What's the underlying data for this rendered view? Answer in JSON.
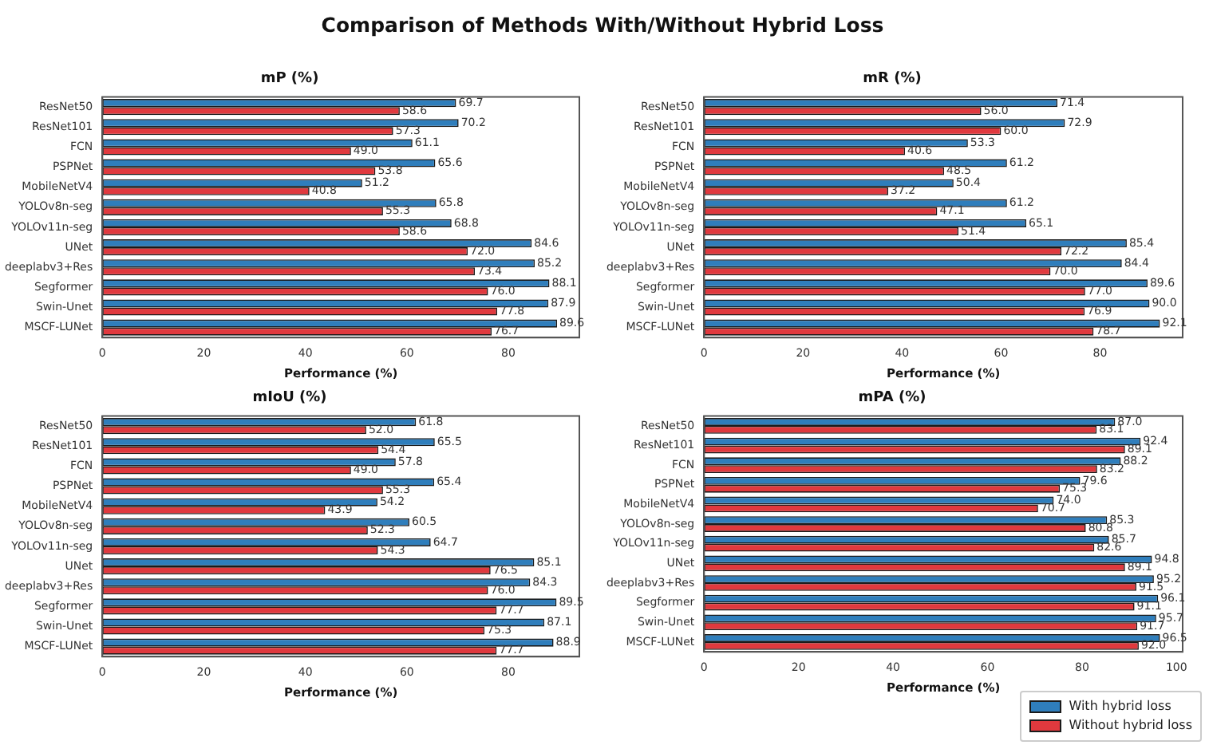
{
  "chart_data": [
    {
      "type": "bar",
      "orientation": "horizontal",
      "title": "mP (%)",
      "xlabel": "Performance (%)",
      "annotations": [
        "Comparison of Methods With/Without Hybrid Loss"
      ],
      "categories": [
        "ResNet50",
        "ResNet101",
        "FCN",
        "PSPNet",
        "MobileNetV4",
        "YOLOv8n-seg",
        "YOLOv11n-seg",
        "UNet",
        "deeplabv3+Res",
        "Segformer",
        "Swin-Unet",
        "MSCF-LUNet"
      ],
      "series": [
        {
          "color": "#2f7ebc",
          "values": [
            69.7,
            70.2,
            61.1,
            65.6,
            51.2,
            65.8,
            68.8,
            84.6,
            85.2,
            88.1,
            87.9,
            89.6
          ],
          "value_labels": [
            "69.7",
            "70.2",
            "61.1",
            "65.6",
            "51.2",
            "65.8",
            "68.8",
            "84.6",
            "85.2",
            "88.1",
            "87.9",
            "89.6"
          ]
        },
        {
          "color": "#e0393e",
          "values": [
            58.6,
            57.3,
            49.0,
            53.8,
            40.8,
            55.3,
            58.6,
            72.0,
            73.4,
            76.0,
            77.8,
            76.7
          ],
          "value_labels": [
            "58.6",
            "57.3",
            "49.0",
            "53.8",
            "40.8",
            "55.3",
            "58.6",
            "72.0",
            "73.4",
            "76.0",
            "77.8",
            "76.7"
          ]
        }
      ],
      "xlim": [
        0,
        94
      ],
      "xticks": [
        0,
        20,
        40,
        60,
        80
      ]
    },
    {
      "type": "bar",
      "orientation": "horizontal",
      "title": "mR (%)",
      "xlabel": "Performance (%)",
      "categories": [
        "ResNet50",
        "ResNet101",
        "FCN",
        "PSPNet",
        "MobileNetV4",
        "YOLOv8n-seg",
        "YOLOv11n-seg",
        "UNet",
        "deeplabv3+Res",
        "Segformer",
        "Swin-Unet",
        "MSCF-LUNet"
      ],
      "series": [
        {
          "color": "#2f7ebc",
          "values": [
            71.4,
            72.9,
            53.3,
            61.2,
            50.4,
            61.2,
            65.1,
            85.4,
            84.4,
            89.6,
            90.0,
            92.1
          ],
          "value_labels": [
            "71.4",
            "72.9",
            "53.3",
            "61.2",
            "50.4",
            "61.2",
            "65.1",
            "85.4",
            "84.4",
            "89.6",
            "90.0",
            "92.1"
          ]
        },
        {
          "color": "#e0393e",
          "values": [
            56.0,
            60.0,
            40.6,
            48.5,
            37.2,
            47.1,
            51.4,
            72.2,
            70.0,
            77.0,
            76.9,
            78.7
          ],
          "value_labels": [
            "56.0",
            "60.0",
            "40.6",
            "48.5",
            "37.2",
            "47.1",
            "51.4",
            "72.2",
            "70.0",
            "77.0",
            "76.9",
            "78.7"
          ]
        }
      ],
      "xlim": [
        0,
        96.7
      ],
      "xticks": [
        0,
        20,
        40,
        60,
        80
      ]
    },
    {
      "type": "bar",
      "orientation": "horizontal",
      "title": "mIoU (%)",
      "xlabel": "Performance (%)",
      "categories": [
        "ResNet50",
        "ResNet101",
        "FCN",
        "PSPNet",
        "MobileNetV4",
        "YOLOv8n-seg",
        "YOLOv11n-seg",
        "UNet",
        "deeplabv3+Res",
        "Segformer",
        "Swin-Unet",
        "MSCF-LUNet"
      ],
      "series": [
        {
          "color": "#2f7ebc",
          "values": [
            61.8,
            65.5,
            57.8,
            65.4,
            54.2,
            60.5,
            64.7,
            85.1,
            84.3,
            89.5,
            87.1,
            88.9
          ],
          "value_labels": [
            "61.8",
            "65.5",
            "57.8",
            "65.4",
            "54.2",
            "60.5",
            "64.7",
            "85.1",
            "84.3",
            "89.5",
            "87.1",
            "88.9"
          ]
        },
        {
          "color": "#e0393e",
          "values": [
            52.0,
            54.4,
            49.0,
            55.3,
            43.9,
            52.3,
            54.3,
            76.5,
            76.0,
            77.7,
            75.3,
            77.7
          ],
          "value_labels": [
            "52.0",
            "54.4",
            "49.0",
            "55.3",
            "43.9",
            "52.3",
            "54.3",
            "76.5",
            "76.0",
            "77.7",
            "75.3",
            "77.7"
          ]
        }
      ],
      "xlim": [
        0,
        94
      ],
      "xticks": [
        0,
        20,
        40,
        60,
        80
      ]
    },
    {
      "type": "bar",
      "orientation": "horizontal",
      "title": "mPA (%)",
      "xlabel": "Performance (%)",
      "categories": [
        "ResNet50",
        "ResNet101",
        "FCN",
        "PSPNet",
        "MobileNetV4",
        "YOLOv8n-seg",
        "YOLOv11n-seg",
        "UNet",
        "deeplabv3+Res",
        "Segformer",
        "Swin-Unet",
        "MSCF-LUNet"
      ],
      "series": [
        {
          "name": "With hybrid loss",
          "color": "#2f7ebc",
          "values": [
            87.0,
            92.4,
            88.2,
            79.6,
            74.0,
            85.3,
            85.7,
            94.8,
            95.2,
            96.1,
            95.7,
            96.5
          ],
          "value_labels": [
            "87.0",
            "92.4",
            "88.2",
            "79.6",
            "74.0",
            "85.3",
            "85.7",
            "94.8",
            "95.2",
            "96.1",
            "95.7",
            "96.5"
          ]
        },
        {
          "name": "Without hybrid loss",
          "color": "#e0393e",
          "values": [
            83.1,
            89.1,
            83.2,
            75.3,
            70.7,
            80.8,
            82.6,
            89.1,
            91.5,
            91.1,
            91.7,
            92.0
          ],
          "value_labels": [
            "83.1",
            "89.1",
            "83.2",
            "75.3",
            "70.7",
            "80.8",
            "82.6",
            "89.1",
            "91.5",
            "91.1",
            "91.7",
            "92.0"
          ]
        }
      ],
      "xlim": [
        0,
        101.3
      ],
      "xticks": [
        0,
        20,
        40,
        60,
        80,
        100
      ],
      "legend": "bottom right"
    }
  ]
}
